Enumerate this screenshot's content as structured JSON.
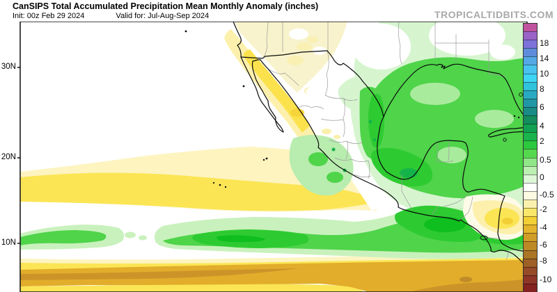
{
  "header": {
    "title": "CanSIPS Total Accumulated Precipitation Mean Monthly Anomaly (inches)",
    "init": "Init: 00z Feb 29 2024",
    "valid": "Valid for: Jul-Aug-Sep 2024",
    "watermark": "TROPICALTIDBITS.COM"
  },
  "map": {
    "lat_labels": [
      "30N",
      "20N",
      "10N"
    ]
  },
  "colorbar": {
    "unit": "inches",
    "cells": [
      "#c0539e",
      "#9a63c8",
      "#7d72da",
      "#5f8cda",
      "#54a8e4",
      "#48c2ee",
      "#3ed4f4",
      "#30c3dc",
      "#2aaac2",
      "#2197a6",
      "#1b8b86",
      "#148c5e",
      "#12a053",
      "#19b44c",
      "#2cc93e",
      "#55d84e",
      "#90e787",
      "#bbf0b1",
      "#def7d9",
      "#ffffff",
      "#fdfae4",
      "#faf0ae",
      "#f8e76a",
      "#f3cf36",
      "#e4b42c",
      "#d09d28",
      "#bc8926",
      "#aa7524",
      "#9d6026",
      "#954a28",
      "#8e3527",
      "#832220"
    ],
    "ticks": [
      {
        "label": "18",
        "pos": 0.0725
      },
      {
        "label": "14",
        "pos": 0.1295
      },
      {
        "label": "10",
        "pos": 0.1865
      },
      {
        "label": "8",
        "pos": 0.2435
      },
      {
        "label": "6",
        "pos": 0.3109
      },
      {
        "label": "4",
        "pos": 0.3808
      },
      {
        "label": "2",
        "pos": 0.4378
      },
      {
        "label": "0.5",
        "pos": 0.5078
      },
      {
        "label": "0",
        "pos": 0.5725
      },
      {
        "label": "-0.5",
        "pos": 0.6373
      },
      {
        "label": "-2",
        "pos": 0.6917
      },
      {
        "label": "-4",
        "pos": 0.7591
      },
      {
        "label": "-6",
        "pos": 0.8238
      },
      {
        "label": "-8",
        "pos": 0.8834
      },
      {
        "label": "-10",
        "pos": 0.9534
      }
    ]
  },
  "palette": {
    "green_lightest": "#d6f5cf",
    "green_light": "#a9eb9d",
    "green_medium": "#4fd44a",
    "green_bright": "#2dcb31",
    "green_brightest": "#0fbe1f",
    "green_dark": "#14b44a",
    "cream": "#f8f3cc",
    "pale_yellow": "#fcf0ac",
    "yellow": "#fbe24d",
    "band_yellow": "#fbe554",
    "pale_band": "#fdf4c0",
    "gold": "#e2ad2b",
    "dark_gold": "#cc9428",
    "ocean_white": "#ffffff"
  }
}
